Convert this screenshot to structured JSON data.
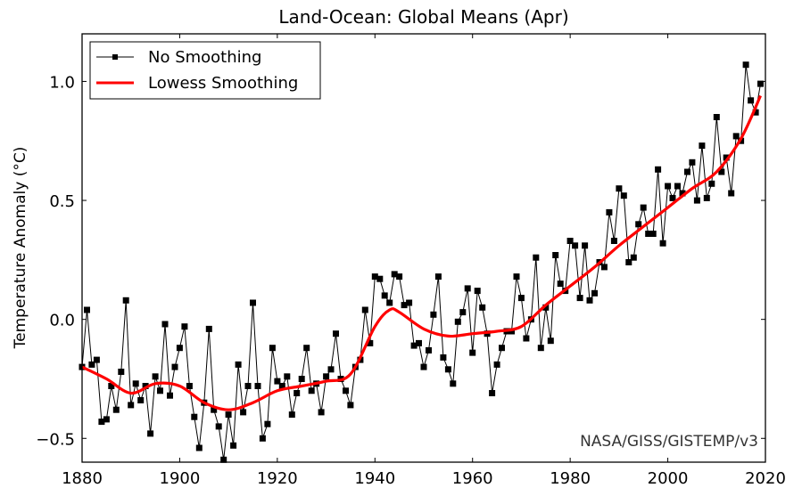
{
  "chart_data": {
    "type": "line",
    "title": "Land-Ocean: Global Means (Apr)",
    "xlabel": "",
    "ylabel": "Temperature Anomaly (°C)",
    "xlim": [
      1880,
      2020
    ],
    "ylim": [
      -0.6,
      1.2
    ],
    "x_ticks": [
      1880,
      1900,
      1920,
      1940,
      1960,
      1980,
      2000,
      2020
    ],
    "x_tick_labels": [
      "1880",
      "1900",
      "1920",
      "1940",
      "1960",
      "1980",
      "2000",
      "2020"
    ],
    "y_ticks": [
      -0.5,
      0.0,
      0.5,
      1.0
    ],
    "y_tick_labels": [
      "−0.5",
      "0.0",
      "0.5",
      "1.0"
    ],
    "grid": false,
    "legend": {
      "placement": "top-left",
      "entries": [
        "No Smoothing",
        "Lowess Smoothing"
      ]
    },
    "annotation": "NASA/GISS/GISTEMP/v3",
    "series": [
      {
        "name": "No Smoothing",
        "color": "#000000",
        "marker": "square",
        "x": [
          1880,
          1881,
          1882,
          1883,
          1884,
          1885,
          1886,
          1887,
          1888,
          1889,
          1890,
          1891,
          1892,
          1893,
          1894,
          1895,
          1896,
          1897,
          1898,
          1899,
          1900,
          1901,
          1902,
          1903,
          1904,
          1905,
          1906,
          1907,
          1908,
          1909,
          1910,
          1911,
          1912,
          1913,
          1914,
          1915,
          1916,
          1917,
          1918,
          1919,
          1920,
          1921,
          1922,
          1923,
          1924,
          1925,
          1926,
          1927,
          1928,
          1929,
          1930,
          1931,
          1932,
          1933,
          1934,
          1935,
          1936,
          1937,
          1938,
          1939,
          1940,
          1941,
          1942,
          1943,
          1944,
          1945,
          1946,
          1947,
          1948,
          1949,
          1950,
          1951,
          1952,
          1953,
          1954,
          1955,
          1956,
          1957,
          1958,
          1959,
          1960,
          1961,
          1962,
          1963,
          1964,
          1965,
          1966,
          1967,
          1968,
          1969,
          1970,
          1971,
          1972,
          1973,
          1974,
          1975,
          1976,
          1977,
          1978,
          1979,
          1980,
          1981,
          1982,
          1983,
          1984,
          1985,
          1986,
          1987,
          1988,
          1989,
          1990,
          1991,
          1992,
          1993,
          1994,
          1995,
          1996,
          1997,
          1998,
          1999,
          2000,
          2001,
          2002,
          2003,
          2004,
          2005,
          2006,
          2007,
          2008,
          2009,
          2010,
          2011,
          2012,
          2013,
          2014,
          2015,
          2016,
          2017,
          2018,
          2019
        ],
        "values": [
          -0.2,
          0.04,
          -0.19,
          -0.17,
          -0.43,
          -0.42,
          -0.28,
          -0.38,
          -0.22,
          0.08,
          -0.36,
          -0.27,
          -0.34,
          -0.28,
          -0.48,
          -0.24,
          -0.3,
          -0.02,
          -0.32,
          -0.2,
          -0.12,
          -0.03,
          -0.28,
          -0.41,
          -0.54,
          -0.35,
          -0.04,
          -0.38,
          -0.45,
          -0.59,
          -0.4,
          -0.53,
          -0.19,
          -0.39,
          -0.28,
          0.07,
          -0.28,
          -0.5,
          -0.44,
          -0.12,
          -0.26,
          -0.28,
          -0.24,
          -0.4,
          -0.31,
          -0.25,
          -0.12,
          -0.3,
          -0.27,
          -0.39,
          -0.24,
          -0.21,
          -0.06,
          -0.25,
          -0.3,
          -0.36,
          -0.2,
          -0.17,
          0.04,
          -0.1,
          0.18,
          0.17,
          0.1,
          0.07,
          0.19,
          0.18,
          0.06,
          0.07,
          -0.11,
          -0.1,
          -0.2,
          -0.13,
          0.02,
          0.18,
          -0.16,
          -0.21,
          -0.27,
          -0.01,
          0.03,
          0.13,
          -0.14,
          0.12,
          0.05,
          -0.06,
          -0.31,
          -0.19,
          -0.12,
          -0.05,
          -0.05,
          0.18,
          0.09,
          -0.08,
          0.0,
          0.26,
          -0.12,
          0.05,
          -0.09,
          0.27,
          0.15,
          0.12,
          0.33,
          0.31,
          0.09,
          0.31,
          0.08,
          0.11,
          0.24,
          0.22,
          0.45,
          0.33,
          0.55,
          0.52,
          0.24,
          0.26,
          0.4,
          0.47,
          0.36,
          0.36,
          0.63,
          0.32,
          0.56,
          0.51,
          0.56,
          0.53,
          0.62,
          0.66,
          0.5,
          0.73,
          0.51,
          0.57,
          0.85,
          0.62,
          0.68,
          0.53,
          0.77,
          0.75,
          1.07,
          0.92,
          0.87,
          0.99
        ]
      },
      {
        "name": "Lowess Smoothing",
        "color": "#ff0000",
        "x": [
          1880,
          1885,
          1890,
          1895,
          1900,
          1905,
          1910,
          1915,
          1920,
          1925,
          1930,
          1935,
          1940,
          1943,
          1945,
          1950,
          1955,
          1960,
          1965,
          1970,
          1975,
          1980,
          1985,
          1990,
          1995,
          2000,
          2005,
          2010,
          2015,
          2019
        ],
        "values": [
          -0.2,
          -0.25,
          -0.31,
          -0.27,
          -0.28,
          -0.35,
          -0.38,
          -0.35,
          -0.3,
          -0.28,
          -0.26,
          -0.23,
          -0.03,
          0.04,
          0.03,
          -0.04,
          -0.07,
          -0.06,
          -0.05,
          -0.03,
          0.06,
          0.14,
          0.22,
          0.31,
          0.39,
          0.47,
          0.55,
          0.62,
          0.76,
          0.94
        ]
      }
    ]
  }
}
